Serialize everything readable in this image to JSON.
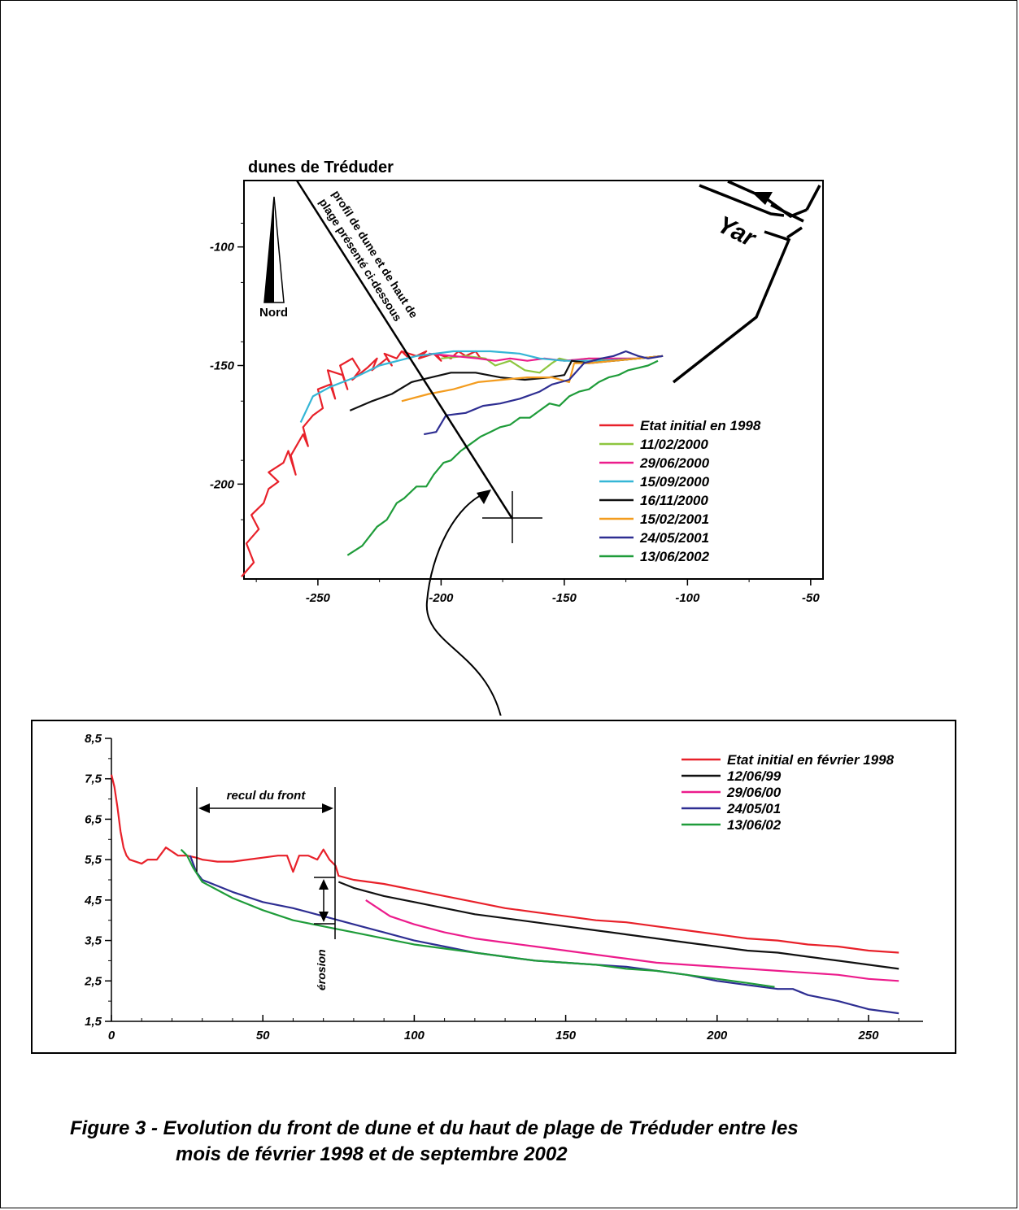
{
  "map": {
    "title": "dunes de Tréduder",
    "north_label": "Nord",
    "profile_label_line1": "profil de dune et de haut de",
    "profile_label_line2": "plage présenté ci-dessous",
    "river_label": "Yar"
  },
  "profile": {
    "recul_label": "recul du front",
    "erosion_label": "érosion"
  },
  "caption": {
    "line1": "Figure 3 - Evolution du front de dune et du haut de plage de Tréduder entre les",
    "line2": "mois de février 1998 et de septembre 2002"
  },
  "chart_data": [
    {
      "type": "line",
      "title": "dunes de Tréduder",
      "xlim": [
        -280,
        -45
      ],
      "ylim": [
        -240,
        -72
      ],
      "x_ticks": [
        "-250",
        "-200",
        "-150",
        "-100",
        "-50"
      ],
      "x_tick_values": [
        -250,
        -200,
        -150,
        -100,
        -50
      ],
      "y_ticks": [
        "-100",
        "-150",
        "-200"
      ],
      "y_tick_values": [
        -100,
        -150,
        -200
      ],
      "legend_position": "bottom-right",
      "colors": [
        "#e8212a",
        "#8dc63f",
        "#ec1c8c",
        "#35b6d6",
        "#111111",
        "#f39c1f",
        "#2e2e92",
        "#1f9c3a"
      ],
      "series": [
        {
          "name": "Etat initial en 1998",
          "color": "#e8212a",
          "x": [
            -281,
            -276,
            -279,
            -274,
            -277,
            -272,
            -270,
            -266,
            -270,
            -264,
            -262,
            -259,
            -261,
            -256,
            -254,
            -256,
            -252,
            -248,
            -250,
            -245,
            -243,
            -246,
            -240,
            -238,
            -241,
            -236,
            -233,
            -236,
            -230,
            -226,
            -228,
            -222,
            -220,
            -223,
            -218,
            -216,
            -213,
            -216,
            -210,
            -206,
            -209,
            -203,
            -200,
            -202,
            -196,
            -193,
            -190,
            -186,
            -184
          ],
          "y": [
            -239,
            -233,
            -225,
            -219,
            -213,
            -208,
            -202,
            -199,
            -195,
            -191,
            -186,
            -196,
            -188,
            -179,
            -184,
            -176,
            -171,
            -168,
            -160,
            -158,
            -164,
            -152,
            -154,
            -160,
            -150,
            -147,
            -152,
            -156,
            -151,
            -147,
            -152,
            -147,
            -150,
            -145,
            -147,
            -144,
            -147,
            -144,
            -146,
            -144,
            -147,
            -145,
            -148,
            -145,
            -147,
            -144,
            -146,
            -144,
            -147
          ]
        },
        {
          "name": "11/02/2000",
          "color": "#8dc63f",
          "x": [
            -200,
            -190,
            -182,
            -178,
            -172,
            -166,
            -160,
            -155,
            -152,
            -148,
            -140,
            -130,
            -120,
            -110
          ],
          "y": [
            -147,
            -146,
            -147,
            -150,
            -148,
            -152,
            -153,
            -149,
            -147,
            -148,
            -147,
            -148,
            -147,
            -146
          ]
        },
        {
          "name": "29/06/2000",
          "color": "#ec1c8c",
          "x": [
            -205,
            -195,
            -185,
            -178,
            -172,
            -165,
            -158,
            -150,
            -140,
            -130,
            -120,
            -110
          ],
          "y": [
            -145,
            -146,
            -147,
            -148,
            -147,
            -148,
            -147,
            -148,
            -147,
            -147,
            -147,
            -146
          ]
        },
        {
          "name": "15/09/2000",
          "color": "#35b6d6",
          "x": [
            -257,
            -252,
            -245,
            -235,
            -225,
            -210,
            -195,
            -180,
            -168,
            -160,
            -150,
            -135,
            -120,
            -110
          ],
          "y": [
            -174,
            -163,
            -159,
            -155,
            -150,
            -146,
            -144,
            -144,
            -145,
            -147,
            -148,
            -148,
            -147,
            -146
          ]
        },
        {
          "name": "16/11/2000",
          "color": "#111111",
          "x": [
            -237,
            -228,
            -220,
            -212,
            -204,
            -196,
            -186,
            -176,
            -166,
            -156,
            -150,
            -147,
            -140,
            -130,
            -120,
            -110
          ],
          "y": [
            -169,
            -165,
            -162,
            -157,
            -155,
            -153,
            -153,
            -155,
            -156,
            -155,
            -154,
            -148,
            -149,
            -148,
            -147,
            -146
          ]
        },
        {
          "name": "15/02/2001",
          "color": "#f39c1f",
          "x": [
            -216,
            -205,
            -195,
            -185,
            -175,
            -165,
            -155,
            -148,
            -146,
            -140,
            -130,
            -120,
            -110
          ],
          "y": [
            -165,
            -162,
            -160,
            -157,
            -156,
            -155,
            -155,
            -157,
            -149,
            -149,
            -148,
            -147,
            -146
          ]
        },
        {
          "name": "24/05/2001",
          "color": "#2e2e92",
          "x": [
            -207,
            -202,
            -198,
            -190,
            -183,
            -176,
            -168,
            -160,
            -155,
            -148,
            -142,
            -135,
            -130,
            -125,
            -120,
            -116,
            -110
          ],
          "y": [
            -179,
            -178,
            -171,
            -170,
            -167,
            -166,
            -164,
            -161,
            -158,
            -156,
            -149,
            -147,
            -146,
            -144,
            -146,
            -147,
            -146
          ]
        },
        {
          "name": "13/06/2002",
          "color": "#1f9c3a",
          "x": [
            -238,
            -232,
            -226,
            -222,
            -218,
            -215,
            -210,
            -206,
            -203,
            -199,
            -196,
            -192,
            -188,
            -184,
            -180,
            -176,
            -172,
            -168,
            -164,
            -160,
            -156,
            -152,
            -148,
            -144,
            -140,
            -136,
            -132,
            -128,
            -124,
            -120,
            -116,
            -112
          ],
          "y": [
            -230,
            -226,
            -218,
            -215,
            -208,
            -206,
            -201,
            -201,
            -196,
            -191,
            -190,
            -186,
            -183,
            -180,
            -178,
            -176,
            -175,
            -172,
            -172,
            -169,
            -166,
            -167,
            -163,
            -161,
            -160,
            -157,
            -155,
            -154,
            -152,
            -151,
            -150,
            -148
          ]
        }
      ]
    },
    {
      "type": "line",
      "xlim": [
        0,
        268
      ],
      "ylim": [
        1.5,
        8.5
      ],
      "x_ticks": [
        "0",
        "50",
        "100",
        "150",
        "200",
        "250"
      ],
      "x_tick_values": [
        0,
        50,
        100,
        150,
        200,
        250
      ],
      "y_ticks": [
        "1,5",
        "2,5",
        "3,5",
        "4,5",
        "5,5",
        "6,5",
        "7,5",
        "8,5"
      ],
      "y_tick_values": [
        1.5,
        2.5,
        3.5,
        4.5,
        5.5,
        6.5,
        7.5,
        8.5
      ],
      "legend_position": "top-right",
      "colors": [
        "#e8212a",
        "#111111",
        "#ec1c8c",
        "#2e2e92",
        "#1f9c3a"
      ],
      "series": [
        {
          "name": "Etat initial en février 1998",
          "color": "#e8212a",
          "x": [
            0,
            1,
            2,
            3,
            4,
            5,
            6,
            8,
            10,
            12,
            15,
            18,
            20,
            22,
            25,
            28,
            30,
            35,
            40,
            45,
            50,
            55,
            58,
            60,
            62,
            65,
            68,
            70,
            72,
            74,
            75,
            80,
            90,
            100,
            110,
            120,
            130,
            140,
            150,
            160,
            170,
            180,
            190,
            200,
            210,
            220,
            230,
            240,
            250,
            260
          ],
          "y": [
            7.6,
            7.3,
            6.8,
            6.2,
            5.8,
            5.6,
            5.5,
            5.45,
            5.4,
            5.5,
            5.5,
            5.8,
            5.7,
            5.6,
            5.6,
            5.55,
            5.5,
            5.45,
            5.45,
            5.5,
            5.55,
            5.6,
            5.6,
            5.2,
            5.6,
            5.6,
            5.5,
            5.75,
            5.5,
            5.35,
            5.1,
            5.0,
            4.9,
            4.75,
            4.6,
            4.45,
            4.3,
            4.2,
            4.1,
            4.0,
            3.95,
            3.85,
            3.75,
            3.65,
            3.55,
            3.5,
            3.4,
            3.35,
            3.25,
            3.2
          ]
        },
        {
          "name": "12/06/99",
          "color": "#111111",
          "x": [
            75,
            80,
            90,
            100,
            110,
            120,
            130,
            140,
            150,
            160,
            170,
            180,
            190,
            200,
            210,
            220,
            230,
            240,
            250,
            260
          ],
          "y": [
            4.95,
            4.8,
            4.6,
            4.45,
            4.3,
            4.15,
            4.05,
            3.95,
            3.85,
            3.75,
            3.65,
            3.55,
            3.45,
            3.35,
            3.25,
            3.2,
            3.1,
            3.0,
            2.9,
            2.8
          ]
        },
        {
          "name": "29/06/00",
          "color": "#ec1c8c",
          "x": [
            84,
            88,
            92,
            100,
            110,
            120,
            130,
            140,
            150,
            160,
            170,
            180,
            190,
            200,
            210,
            220,
            230,
            240,
            250,
            260
          ],
          "y": [
            4.5,
            4.3,
            4.1,
            3.9,
            3.7,
            3.55,
            3.45,
            3.35,
            3.25,
            3.15,
            3.05,
            2.95,
            2.9,
            2.85,
            2.8,
            2.75,
            2.7,
            2.65,
            2.55,
            2.5
          ]
        },
        {
          "name": "24/05/01",
          "color": "#2e2e92",
          "x": [
            26,
            28,
            30,
            40,
            50,
            60,
            70,
            80,
            90,
            100,
            110,
            120,
            130,
            140,
            150,
            160,
            170,
            180,
            190,
            200,
            210,
            220,
            225,
            230,
            240,
            250,
            260
          ],
          "y": [
            5.6,
            5.2,
            5.0,
            4.7,
            4.45,
            4.3,
            4.1,
            3.9,
            3.7,
            3.5,
            3.35,
            3.2,
            3.1,
            3.0,
            2.95,
            2.9,
            2.85,
            2.75,
            2.65,
            2.5,
            2.4,
            2.3,
            2.3,
            2.15,
            2.0,
            1.8,
            1.7
          ]
        },
        {
          "name": "13/06/02",
          "color": "#1f9c3a",
          "x": [
            23,
            25,
            27,
            30,
            40,
            50,
            60,
            70,
            80,
            90,
            100,
            110,
            120,
            130,
            140,
            150,
            160,
            170,
            180,
            190,
            200,
            210,
            219
          ],
          "y": [
            5.75,
            5.6,
            5.3,
            4.95,
            4.55,
            4.25,
            4.0,
            3.85,
            3.7,
            3.55,
            3.4,
            3.3,
            3.2,
            3.1,
            3.0,
            2.95,
            2.9,
            2.8,
            2.75,
            2.65,
            2.55,
            2.45,
            2.35
          ]
        }
      ]
    }
  ]
}
